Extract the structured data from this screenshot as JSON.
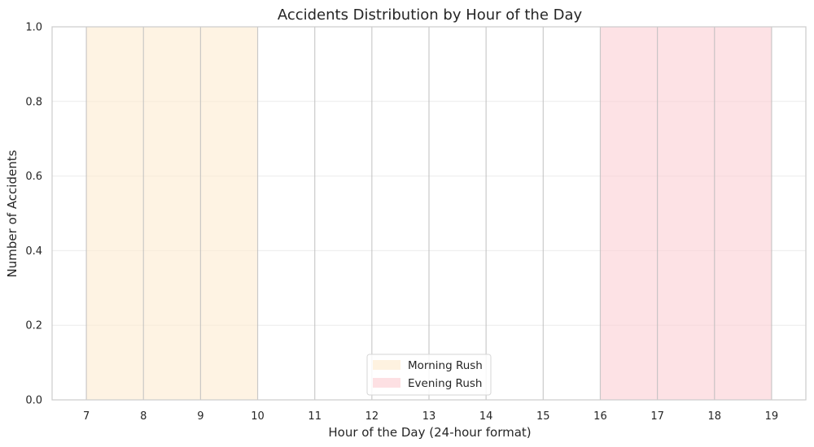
{
  "chart_data": {
    "type": "bar",
    "title": "Accidents Distribution by Hour of the Day",
    "xlabel": "Hour of the Day (24-hour format)",
    "ylabel": "Number of Accidents",
    "x_ticks": [
      "7",
      "8",
      "9",
      "10",
      "11",
      "12",
      "13",
      "14",
      "15",
      "16",
      "17",
      "18",
      "19"
    ],
    "x_range": [
      6.4,
      19.6
    ],
    "y_ticks": [
      "0.0",
      "0.2",
      "0.4",
      "0.6",
      "0.8",
      "1.0"
    ],
    "ylim": [
      0,
      1
    ],
    "grid": true,
    "vertical_lines_at": [
      7,
      8,
      9,
      10,
      11,
      12,
      13,
      14,
      15,
      16,
      17,
      18,
      19
    ],
    "shaded_regions": [
      {
        "name": "Morning Rush",
        "x_start": 7,
        "x_end": 10,
        "color": "#fdebd0"
      },
      {
        "name": "Evening Rush",
        "x_start": 16,
        "x_end": 19,
        "color": "#fccfd4"
      }
    ],
    "series": [],
    "legend": {
      "position": "bottom-center",
      "entries": [
        "Morning Rush",
        "Evening Rush"
      ]
    }
  }
}
